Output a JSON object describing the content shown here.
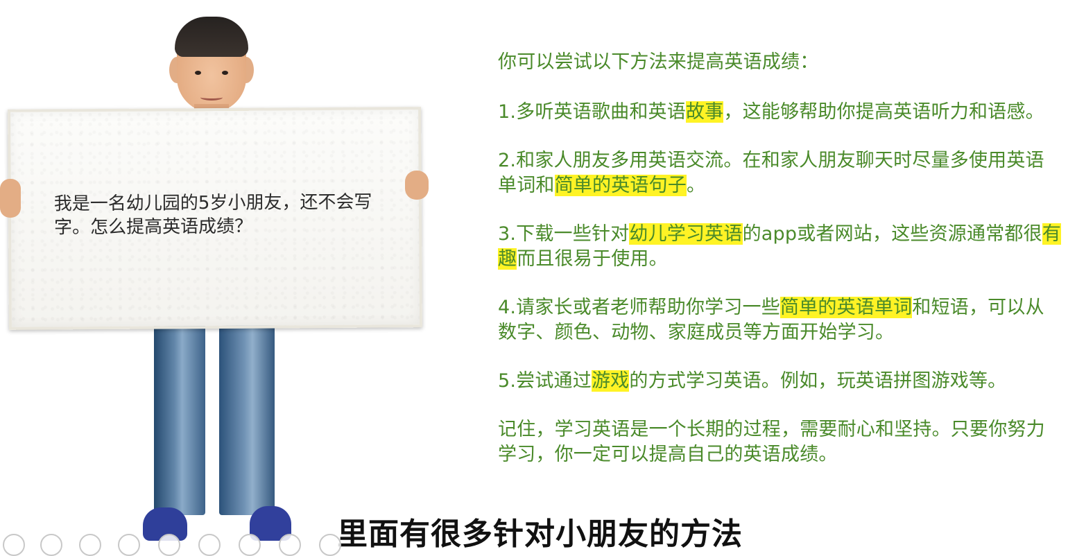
{
  "slide": {
    "question": "我是一名幼儿园的5岁小朋友，还不会写字。怎么提高英语成绩？",
    "answer_intro": "你可以尝试以下方法来提高英语成绩：",
    "tips": [
      [
        {
          "text": "1.多听英语歌曲和英语"
        },
        {
          "text": "故事",
          "hl": true
        },
        {
          "text": "，这能够帮助你提高英语听力和语感。"
        }
      ],
      [
        {
          "text": "2.和家人朋友多用英语交流。在和家人朋友聊天时尽量多使用英语单词和"
        },
        {
          "text": "简单的英语句子",
          "hl": true
        },
        {
          "text": "。"
        }
      ],
      [
        {
          "text": "3.下载一些针对"
        },
        {
          "text": "幼儿学习英语",
          "hl": true
        },
        {
          "text": "的app或者网站，这些资源通常都很"
        },
        {
          "text": "有趣",
          "hl": true
        },
        {
          "text": "而且很易于使用。"
        }
      ],
      [
        {
          "text": "4.请家长或者老师帮助你学习一些"
        },
        {
          "text": "简单的英语单词",
          "hl": true
        },
        {
          "text": "和短语，可以从数字、颜色、动物、家庭成员等方面开始学习。"
        }
      ],
      [
        {
          "text": "5.尝试通过"
        },
        {
          "text": "游戏",
          "hl": true
        },
        {
          "text": "的方式学习英语。例如，玩英语拼图游戏等。"
        }
      ]
    ],
    "conclusion": "记住，学习英语是一个长期的过程，需要耐心和坚持。只要你努力学习，你一定可以提高自己的英语成绩。"
  },
  "subtitle": "里面有很多针对小朋友的方法",
  "toolbar": {
    "buttons": [
      "previous-icon",
      "next-icon",
      "pen-icon",
      "grid-icon",
      "zoom-icon",
      "menu-icon",
      "screen-icon",
      "more-icon",
      "exit-icon"
    ]
  },
  "colors": {
    "answer_text": "#4a8a2a",
    "highlight": "#fff325",
    "question_text": "#2b2b2b"
  }
}
